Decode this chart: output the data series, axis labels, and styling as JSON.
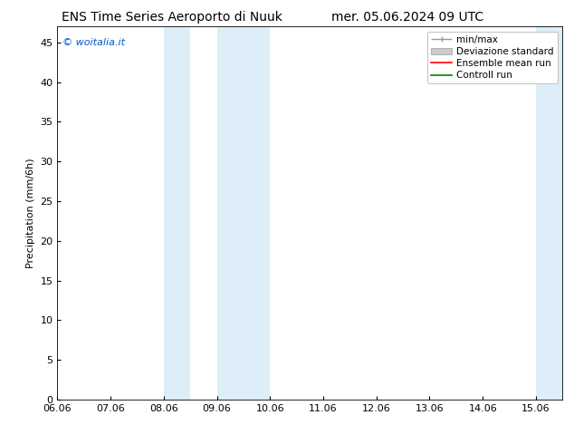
{
  "title_left": "ENS Time Series Aeroporto di Nuuk",
  "title_right": "mer. 05.06.2024 09 UTC",
  "ylabel": "Precipitation (mm/6h)",
  "watermark": "© woitalia.it",
  "x_tick_labels": [
    "06.06",
    "07.06",
    "08.06",
    "09.06",
    "10.06",
    "11.06",
    "12.06",
    "13.06",
    "14.06",
    "15.06"
  ],
  "x_tick_positions": [
    6.0,
    7.0,
    8.0,
    9.0,
    10.0,
    11.0,
    12.0,
    13.0,
    14.0,
    15.0
  ],
  "ylim": [
    0,
    47
  ],
  "yticks": [
    0,
    5,
    10,
    15,
    20,
    25,
    30,
    35,
    40,
    45
  ],
  "shaded_bands": [
    {
      "x_start": 8.0,
      "x_end": 8.5,
      "color": "#ddeef8"
    },
    {
      "x_start": 9.0,
      "x_end": 10.0,
      "color": "#ddeef8"
    },
    {
      "x_start": 15.0,
      "x_end": 15.5,
      "color": "#ddeef8"
    }
  ],
  "legend_entries": [
    {
      "label": "min/max",
      "color": "#999999",
      "style": "minmax"
    },
    {
      "label": "Deviazione standard",
      "color": "#cccccc",
      "style": "band"
    },
    {
      "label": "Ensemble mean run",
      "color": "#ff0000",
      "style": "line"
    },
    {
      "label": "Controll run",
      "color": "#008000",
      "style": "line"
    }
  ],
  "background_color": "#ffffff",
  "plot_bg_color": "#ffffff",
  "x_min": 6.0,
  "x_max": 15.5,
  "font_size": 8,
  "title_font_size": 10,
  "watermark_fontsize": 8
}
